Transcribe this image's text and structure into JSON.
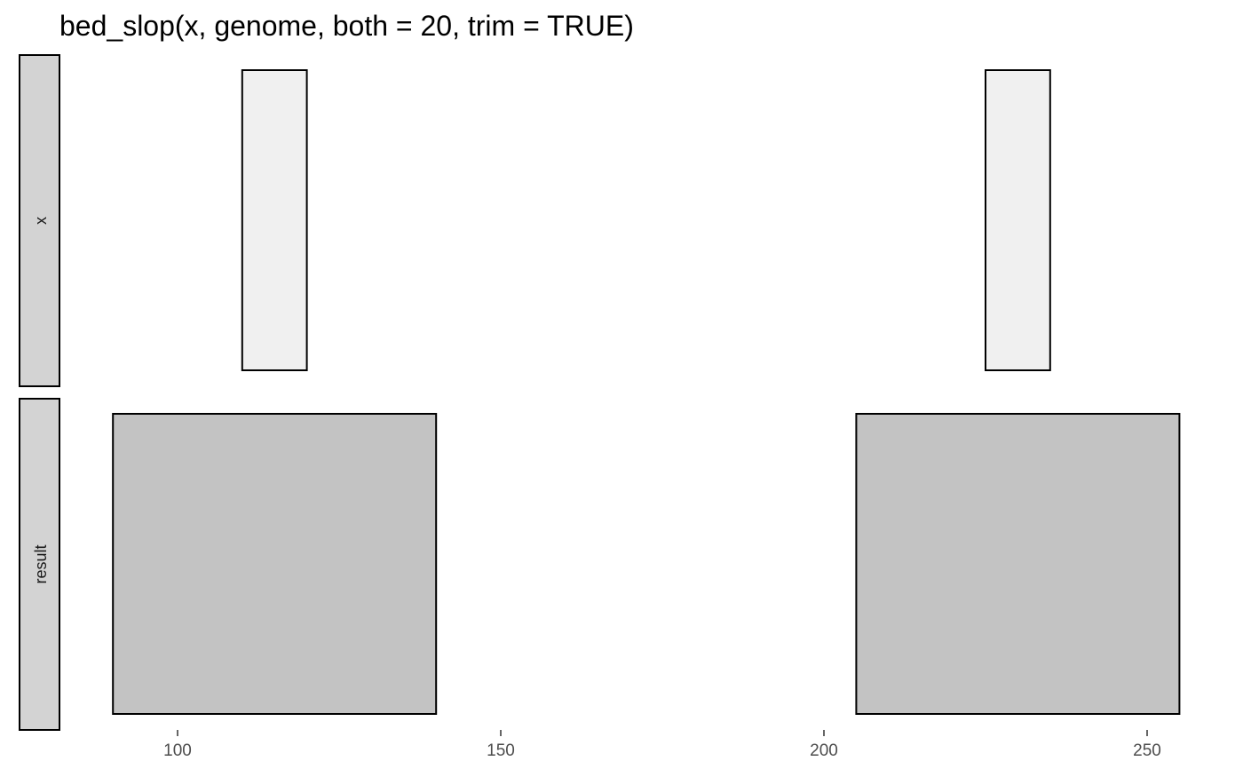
{
  "chart_data": {
    "type": "bar",
    "title": "bed_slop(x, genome, both = 20, trim = TRUE)",
    "xlabel": "",
    "ylabel": "",
    "xlim": [
      80,
      255
    ],
    "x_ticks": [
      100,
      150,
      200,
      250
    ],
    "grid": false,
    "facets": [
      {
        "label": "x",
        "fill": "#f0f0f0",
        "intervals": [
          {
            "start": 110,
            "end": 120
          },
          {
            "start": 225,
            "end": 235
          }
        ]
      },
      {
        "label": "result",
        "fill": "#c3c3c3",
        "intervals": [
          {
            "start": 90,
            "end": 140
          },
          {
            "start": 205,
            "end": 255
          }
        ]
      }
    ],
    "colors": {
      "strip_fill": "#d3d3d3",
      "outline": "#000000",
      "tick_label": "#4d4d4d"
    }
  }
}
